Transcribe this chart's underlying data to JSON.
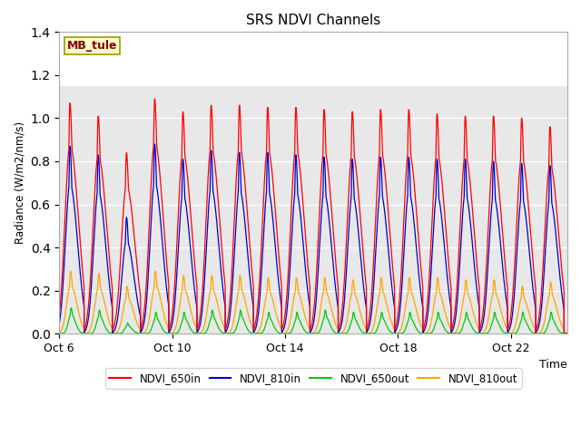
{
  "title": "SRS NDVI Channels",
  "xlabel": "Time",
  "ylabel": "Radiance (W/m2/nm/s)",
  "ylim": [
    0.0,
    1.4
  ],
  "yticks": [
    0.0,
    0.2,
    0.4,
    0.6,
    0.8,
    1.0,
    1.2,
    1.4
  ],
  "label_text": "MB_tule",
  "label_bg": "#FFFFCC",
  "label_border": "#999900",
  "label_text_color": "#880000",
  "colors": {
    "NDVI_650in": "#FF0000",
    "NDVI_810in": "#0000CC",
    "NDVI_650out": "#00CC00",
    "NDVI_810out": "#FFA500"
  },
  "background_color": "#E8E8E8",
  "n_days": 18,
  "peak_650in": [
    1.07,
    1.01,
    0.84,
    1.09,
    1.03,
    1.06,
    1.06,
    1.05,
    1.05,
    1.04,
    1.03,
    1.04,
    1.04,
    1.02,
    1.01,
    1.01,
    1.0,
    0.96
  ],
  "peak_810in": [
    0.87,
    0.83,
    0.54,
    0.88,
    0.81,
    0.85,
    0.84,
    0.84,
    0.83,
    0.82,
    0.81,
    0.82,
    0.82,
    0.81,
    0.81,
    0.8,
    0.79,
    0.78
  ],
  "peak_650out": [
    0.12,
    0.11,
    0.05,
    0.1,
    0.1,
    0.11,
    0.11,
    0.1,
    0.1,
    0.11,
    0.1,
    0.1,
    0.1,
    0.1,
    0.1,
    0.1,
    0.1,
    0.1
  ],
  "peak_810out": [
    0.29,
    0.28,
    0.22,
    0.29,
    0.27,
    0.27,
    0.27,
    0.26,
    0.26,
    0.26,
    0.25,
    0.26,
    0.26,
    0.26,
    0.25,
    0.25,
    0.22,
    0.24
  ],
  "xtick_labels": [
    "Oct 6",
    "Oct 10",
    "Oct 14",
    "Oct 18",
    "Oct 22"
  ],
  "xtick_positions": [
    0,
    4,
    8,
    12,
    16
  ]
}
